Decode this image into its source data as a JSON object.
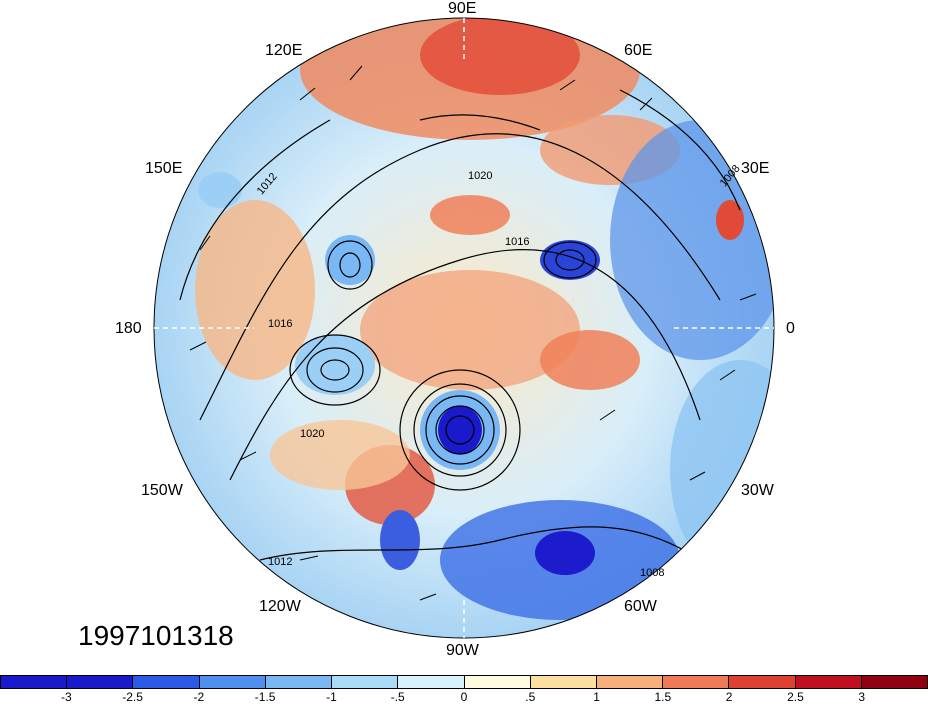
{
  "map": {
    "projection": "north-polar-stereographic",
    "timestamp": "1997101318",
    "longitude_labels": [
      "90E",
      "60E",
      "30E",
      "0",
      "30W",
      "60W",
      "90W",
      "120W",
      "150W",
      "180",
      "150E",
      "120E"
    ],
    "contour_labels": [
      "1012",
      "1016",
      "1020",
      "1008"
    ],
    "colorbar": {
      "colors": [
        "#1a1acc",
        "#2a5ae6",
        "#4f8ff0",
        "#79b8f5",
        "#a8dcf7",
        "#d8f1fb",
        "#fffbe0",
        "#fde0a0",
        "#f8b07a",
        "#f07a55",
        "#e04030",
        "#c01020",
        "#900010"
      ],
      "tick_labels": [
        "-3",
        "-2.5",
        "-2",
        "-1.5",
        "-1",
        "-.5",
        "0",
        ".5",
        "1",
        "1.5",
        "2",
        "2.5",
        "3"
      ]
    }
  }
}
